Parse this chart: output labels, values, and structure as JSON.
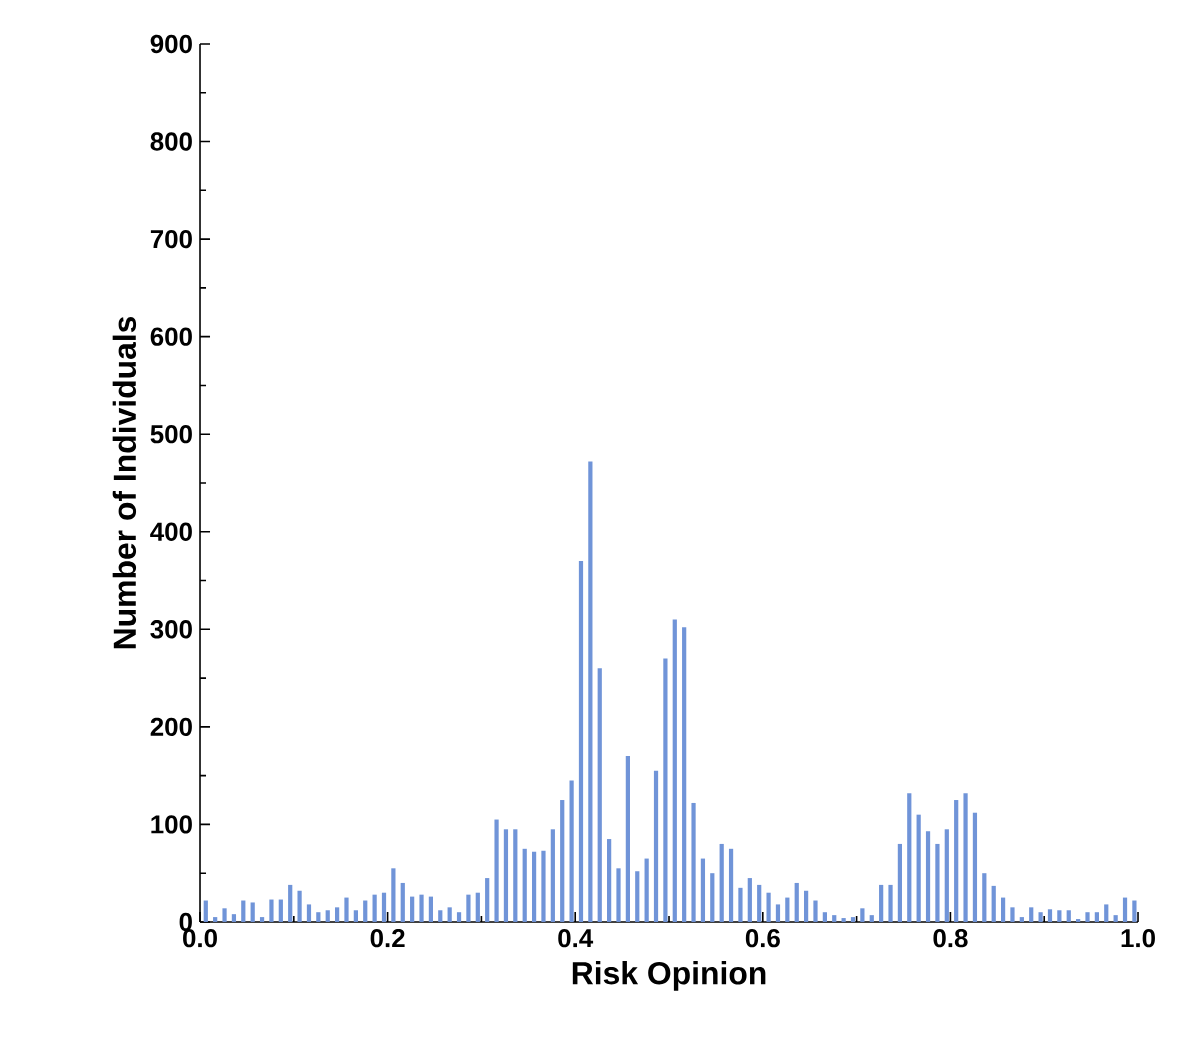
{
  "chart_data": {
    "type": "histogram",
    "xlabel": "Risk Opinion",
    "ylabel": "Number of Individuals",
    "color": "#7094d8",
    "bins": [
      0,
      0.01,
      0.02,
      0.03,
      0.04,
      0.05,
      0.06,
      0.07,
      0.08,
      0.09,
      0.1,
      0.11,
      0.12,
      0.13,
      0.14,
      0.15,
      0.16,
      0.17,
      0.18,
      0.19,
      0.2,
      0.21,
      0.22,
      0.23,
      0.24,
      0.25,
      0.26,
      0.27,
      0.28,
      0.29,
      0.3,
      0.31,
      0.32,
      0.33,
      0.34,
      0.35,
      0.36,
      0.37,
      0.38,
      0.39,
      0.4,
      0.41,
      0.42,
      0.43,
      0.44,
      0.45,
      0.46,
      0.47,
      0.48,
      0.49,
      0.5,
      0.51,
      0.52,
      0.53,
      0.54,
      0.55,
      0.56,
      0.57,
      0.58,
      0.59,
      0.6,
      0.61,
      0.62,
      0.63,
      0.64,
      0.65,
      0.66,
      0.67,
      0.68,
      0.69,
      0.7,
      0.71,
      0.72,
      0.73,
      0.74,
      0.75,
      0.76,
      0.77,
      0.78,
      0.79,
      0.8,
      0.81,
      0.82,
      0.83,
      0.84,
      0.85,
      0.86,
      0.87,
      0.88,
      0.89,
      0.9,
      0.91,
      0.92,
      0.93,
      0.94,
      0.95,
      0.96,
      0.97,
      0.98,
      0.99,
      1
    ],
    "values": [
      22,
      5,
      14,
      8,
      22,
      20,
      5,
      23,
      23,
      38,
      32,
      18,
      10,
      12,
      15,
      25,
      12,
      22,
      28,
      30,
      55,
      40,
      26,
      28,
      26,
      12,
      15,
      10,
      28,
      30,
      45,
      105,
      95,
      95,
      75,
      72,
      73,
      95,
      125,
      145,
      370,
      472,
      260,
      85,
      55,
      170,
      52,
      65,
      155,
      270,
      310,
      302,
      122,
      65,
      50,
      80,
      75,
      35,
      45,
      38,
      30,
      18,
      25,
      40,
      32,
      22,
      10,
      7,
      4,
      5,
      14,
      7,
      38,
      38,
      80,
      132,
      110,
      93,
      80,
      95,
      125,
      132,
      112,
      50,
      37,
      25,
      15,
      5,
      15,
      10,
      13,
      12,
      12,
      3,
      10,
      10,
      18,
      7,
      25,
      22
    ],
    "xlim": [
      0,
      1
    ],
    "ylim": [
      0,
      900
    ],
    "xticks": [
      {
        "value": 0,
        "label": "0.0"
      },
      {
        "value": 0.2,
        "label": "0.2"
      },
      {
        "value": 0.4,
        "label": "0.4"
      },
      {
        "value": 0.6,
        "label": "0.6"
      },
      {
        "value": 0.8,
        "label": "0.8"
      },
      {
        "value": 1,
        "label": "1.0"
      }
    ],
    "yticks": [
      0,
      100,
      200,
      300,
      400,
      500,
      600,
      700,
      800,
      900
    ]
  }
}
